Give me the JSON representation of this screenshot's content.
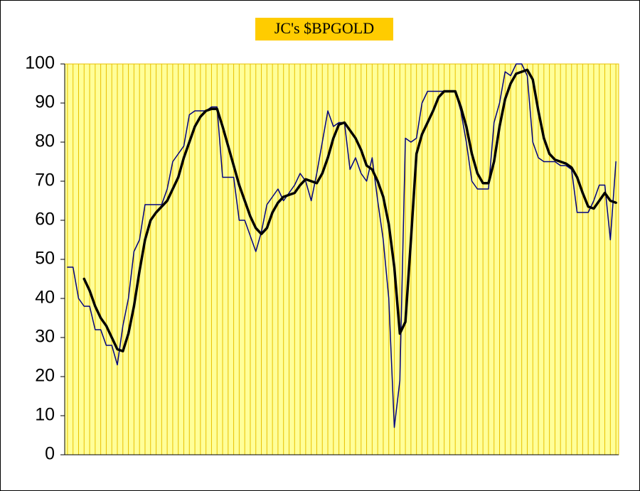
{
  "chart_data": {
    "type": "line",
    "title": "JC's $BPGOLD",
    "categories": [
      null,
      null,
      null,
      null,
      null,
      null,
      null,
      null,
      null,
      null,
      null,
      null,
      null,
      null,
      null,
      null,
      null,
      null,
      null,
      null,
      null,
      null,
      null,
      null,
      null,
      null,
      null,
      null,
      null,
      null,
      null,
      null,
      null,
      null,
      null,
      null,
      null,
      null,
      null,
      null,
      null,
      null,
      null,
      null,
      null,
      null,
      null,
      null,
      null,
      null,
      null,
      null,
      null,
      null,
      null,
      null,
      null,
      null,
      null,
      null,
      null,
      null,
      null,
      null,
      null,
      null,
      null,
      null,
      null,
      null,
      null,
      null,
      null,
      null,
      null,
      null,
      null,
      null,
      null,
      null,
      null,
      null,
      null,
      null,
      null,
      null,
      null,
      null,
      null,
      null,
      null,
      null,
      null,
      null,
      null,
      null,
      null,
      null,
      null,
      null
    ],
    "series": [
      {
        "color": "#000080",
        "width": 1.5,
        "values": [
          48,
          48,
          40,
          38,
          38,
          32,
          32,
          28,
          28,
          23,
          33,
          40,
          52,
          55,
          64,
          64,
          64,
          64,
          68,
          75,
          77,
          79,
          87,
          88,
          88,
          88,
          89,
          89,
          71,
          71,
          71,
          60,
          60,
          56,
          52,
          57,
          64,
          66,
          68,
          65,
          67,
          69,
          72,
          70,
          65,
          72,
          80,
          88,
          84,
          85,
          85,
          73,
          76,
          72,
          70,
          76,
          65,
          55,
          40,
          7,
          19,
          81,
          80,
          81,
          90,
          93,
          93,
          93,
          93,
          93,
          93,
          88,
          80,
          70,
          68,
          68,
          68,
          85,
          90,
          98,
          97,
          100,
          100,
          97,
          80,
          76,
          75,
          75,
          75,
          74,
          74,
          73,
          62,
          62,
          62,
          65,
          69,
          69,
          55,
          75
        ]
      },
      {
        "color": "#000000",
        "width": 3.5,
        "values": [
          null,
          null,
          null,
          45,
          42,
          38,
          35,
          33,
          30,
          27,
          26.5,
          31,
          38,
          47,
          55,
          60,
          62,
          63.5,
          65,
          68,
          71,
          76,
          80,
          84,
          86.5,
          88,
          88.5,
          88.5,
          84,
          79,
          74,
          69,
          65,
          61,
          58,
          56.5,
          58,
          62,
          64.5,
          66,
          66.5,
          67,
          69,
          70.5,
          70,
          69.5,
          72,
          76,
          81,
          84.5,
          85,
          83,
          81,
          78,
          74,
          73,
          70,
          66,
          59,
          48,
          31,
          34,
          55,
          77,
          82,
          85,
          88,
          91.5,
          93,
          93,
          93,
          89,
          84,
          77,
          72,
          69.5,
          69.5,
          75,
          84,
          91,
          95,
          97.5,
          98,
          98.5,
          96,
          88,
          81,
          77,
          75.5,
          75,
          74.5,
          73.5,
          71,
          67,
          63.5,
          63,
          65,
          67,
          65,
          64.5
        ]
      }
    ],
    "ylim": [
      0,
      100
    ],
    "yticks": [
      0,
      10,
      20,
      30,
      40,
      50,
      60,
      70,
      80,
      90,
      100
    ],
    "grid": true,
    "background": "#FFFF99",
    "grid_color": "#E8C000"
  }
}
